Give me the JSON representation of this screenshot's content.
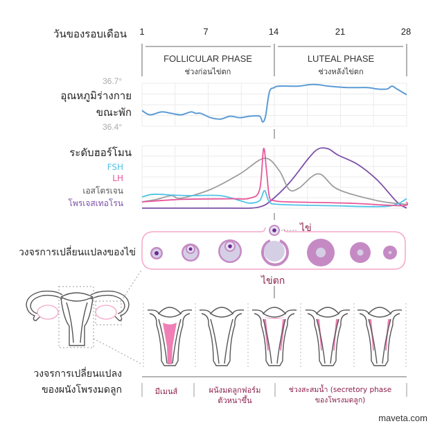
{
  "header": {
    "day_axis_label": "วันของรอบเดือน",
    "day_ticks": [
      "1",
      "7",
      "14",
      "21",
      "28"
    ]
  },
  "phases": [
    {
      "title": "FOLLICULAR PHASE",
      "subtitle": "ช่วงก่อนไข่ตก"
    },
    {
      "title": "LUTEAL PHASE",
      "subtitle": "ช่วงหลังไข่ตก"
    }
  ],
  "temperature": {
    "label_line1": "อุณหภูมิร่างกาย",
    "label_line2": "ขณะพัก",
    "max_label": "36.7°",
    "min_label": "36.4°",
    "color": "#5b9bd5"
  },
  "hormones": {
    "label": "ระดับฮอร์โมน",
    "legend": [
      {
        "name": "FSH",
        "color": "#4fc3e8"
      },
      {
        "name": "LH",
        "color": "#e8579a"
      },
      {
        "name": "เอสโตรเจน",
        "color": "#9e9e9e"
      },
      {
        "name": "โพรเจสเทอโรน",
        "color": "#7b4fa6"
      }
    ]
  },
  "ovarian": {
    "label": "วงจรการเปลี่ยนแปลงของไข่",
    "egg_label": "ไข่",
    "ovulation_label": "ไข่ตก"
  },
  "endometrium": {
    "label_line1": "วงจรการเปลี่ยนแปลง",
    "label_line2": "ของผนังโพรงมดลูก",
    "stages": [
      {
        "line1": "มีเมนส์",
        "line2": ""
      },
      {
        "line1": "ผนังมดลูกฟอร์ม",
        "line2": "ตัวหนาขึ้น"
      },
      {
        "line1": "ช่วงสะสมน้ำ (secretory phase",
        "line2": "ของโพรงมดลูก)"
      }
    ]
  },
  "credit": "maveta.com",
  "colors": {
    "follicle_fill": "#d5cfe6",
    "follicle_ring": "#c58ac4",
    "egg_core": "#6a2c91",
    "menses_pink": "#ef7fb5",
    "label_maroon": "#8a1f4a"
  },
  "chart_data": [
    {
      "type": "line",
      "title": "อุณหภูมิร่างกายขณะพัก",
      "xlabel": "วันของรอบเดือน",
      "ylabel": "°C",
      "xlim": [
        1,
        28
      ],
      "ylim": [
        36.4,
        36.7
      ],
      "grid": true,
      "series": [
        {
          "name": "อุณหภูมิร่างกายขณะพัก",
          "x": [
            1,
            1.8,
            3,
            4,
            5,
            6,
            6.5,
            7,
            8,
            9,
            10,
            11,
            12,
            13,
            13.3,
            13.6,
            14,
            14.5,
            15,
            17,
            18,
            19,
            20,
            22,
            24,
            25,
            26,
            26.5,
            27,
            28
          ],
          "y": [
            36.51,
            36.48,
            36.5,
            36.49,
            36.48,
            36.5,
            36.49,
            36.49,
            36.46,
            36.45,
            36.47,
            36.46,
            36.47,
            36.47,
            36.43,
            36.47,
            36.64,
            36.67,
            36.68,
            36.68,
            36.69,
            36.69,
            36.68,
            36.67,
            36.67,
            36.66,
            36.66,
            36.68,
            36.66,
            36.62
          ]
        }
      ]
    },
    {
      "type": "line",
      "title": "ระดับฮอร์โมน",
      "xlim": [
        1,
        28
      ],
      "ylim": [
        0,
        100
      ],
      "grid": true,
      "legend": "left",
      "series": [
        {
          "name": "FSH",
          "x": [
            1,
            2,
            3,
            4,
            6,
            9,
            11,
            12,
            13,
            13.5,
            14,
            15,
            20,
            26,
            28
          ],
          "y": [
            18,
            22,
            22,
            21,
            20,
            20,
            12,
            8,
            12,
            28,
            10,
            6,
            4,
            3,
            15
          ]
        },
        {
          "name": "LH",
          "x": [
            1,
            5,
            10,
            12,
            13,
            13.4,
            13.7,
            14,
            14.5,
            16,
            22,
            27.5,
            28
          ],
          "y": [
            10,
            14,
            15,
            16,
            30,
            95,
            60,
            18,
            12,
            10,
            8,
            4,
            10
          ]
        },
        {
          "name": "เอสโตรเจน",
          "x": [
            1,
            2.5,
            4,
            5,
            8,
            11,
            13.5,
            15,
            16,
            17,
            19,
            21,
            25,
            28
          ],
          "y": [
            10,
            14,
            20,
            16,
            30,
            55,
            80,
            60,
            30,
            32,
            55,
            30,
            12,
            6
          ]
        },
        {
          "name": "โพรเจสเทอโรน",
          "x": [
            1,
            10,
            12,
            13,
            14,
            16,
            18,
            19,
            20,
            21,
            23,
            25,
            27,
            28
          ],
          "y": [
            0,
            0,
            0,
            2,
            10,
            40,
            80,
            95,
            95,
            85,
            70,
            45,
            10,
            0
          ]
        }
      ]
    }
  ]
}
